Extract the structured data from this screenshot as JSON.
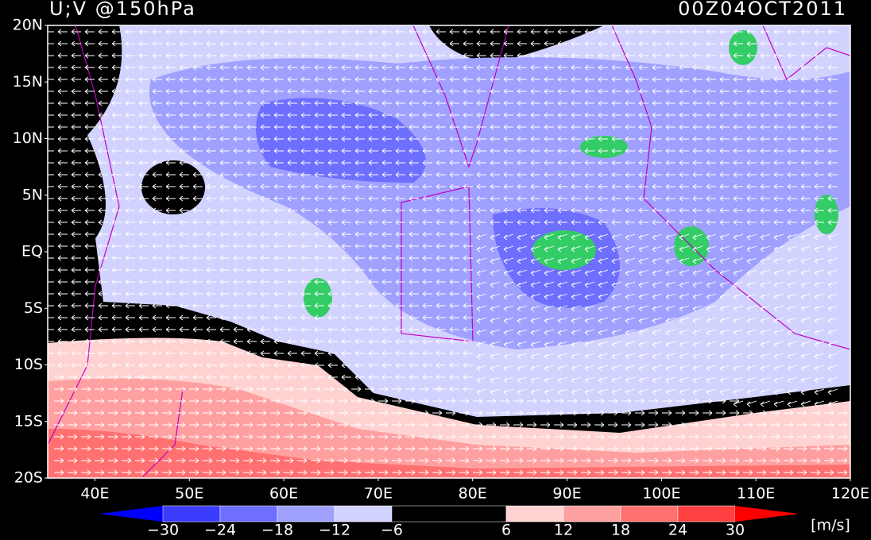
{
  "map": {
    "title": "U;V @150hPa",
    "time": "00Z04OCT2011",
    "xlim": [
      35,
      120
    ],
    "ylim": [
      -20,
      20
    ],
    "lat_ticks": [
      {
        "value": 20,
        "label": "20N"
      },
      {
        "value": 15,
        "label": "15N"
      },
      {
        "value": 10,
        "label": "10N"
      },
      {
        "value": 5,
        "label": "5N"
      },
      {
        "value": 0,
        "label": "EQ"
      },
      {
        "value": -5,
        "label": "5S"
      },
      {
        "value": -10,
        "label": "10S"
      },
      {
        "value": -15,
        "label": "15S"
      },
      {
        "value": -20,
        "label": "20S"
      }
    ],
    "lon_ticks": [
      {
        "value": 40,
        "label": "40E"
      },
      {
        "value": 50,
        "label": "50E"
      },
      {
        "value": 60,
        "label": "60E"
      },
      {
        "value": 70,
        "label": "70E"
      },
      {
        "value": 80,
        "label": "80E"
      },
      {
        "value": 90,
        "label": "90E"
      },
      {
        "value": 100,
        "label": "100E"
      },
      {
        "value": 110,
        "label": "110E"
      },
      {
        "value": 120,
        "label": "120E"
      }
    ],
    "colorbar": {
      "levels": [
        {
          "value": -30,
          "label": "−30"
        },
        {
          "value": -24,
          "label": "−24"
        },
        {
          "value": -18,
          "label": "−18"
        },
        {
          "value": -12,
          "label": "−12"
        },
        {
          "value": -6,
          "label": "−6"
        },
        6,
        12,
        18,
        24,
        30
      ],
      "colors": [
        "#0000ff",
        "#3c3cff",
        "#6e6eff",
        "#a0a0ff",
        "#d2d2ff",
        "#000000",
        "#ffd2d2",
        "#ffa0a0",
        "#ff7070",
        "#ff4040",
        "#ff0000"
      ],
      "unit": "[m/s]"
    }
  }
}
